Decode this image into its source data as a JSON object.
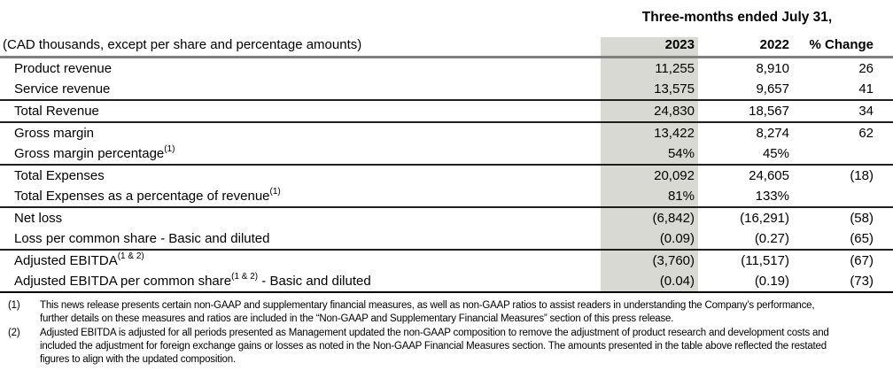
{
  "report": {
    "period_header": "Three-months ended July 31,",
    "caption": "(CAD thousands, except per share and percentage amounts)",
    "columns": {
      "y2023": "2023",
      "y2022": "2022",
      "change": "% Change"
    },
    "rows": [
      {
        "label": "Product revenue",
        "sup": "",
        "label_suffix": "",
        "y2023": "11,255",
        "y2022": "8,910",
        "change": "26",
        "section_start": false
      },
      {
        "label": "Service revenue",
        "sup": "",
        "label_suffix": "",
        "y2023": "13,575",
        "y2022": "9,657",
        "change": "41",
        "section_start": false
      },
      {
        "label": "Total Revenue",
        "sup": "",
        "label_suffix": "",
        "y2023": "24,830",
        "y2022": "18,567",
        "change": "34",
        "section_start": true
      },
      {
        "label": "Gross margin",
        "sup": "",
        "label_suffix": "",
        "y2023": "13,422",
        "y2022": "8,274",
        "change": "62",
        "section_start": true
      },
      {
        "label": "Gross margin percentage",
        "sup": "(1)",
        "label_suffix": "",
        "y2023": "54%",
        "y2022": "45%",
        "change": "",
        "section_start": false
      },
      {
        "label": "Total Expenses",
        "sup": "",
        "label_suffix": "",
        "y2023": "20,092",
        "y2022": "24,605",
        "change": "(18)",
        "section_start": true
      },
      {
        "label": "Total Expenses as a percentage of revenue",
        "sup": "(1)",
        "label_suffix": "",
        "y2023": "81%",
        "y2022": "133%",
        "change": "",
        "section_start": false
      },
      {
        "label": "Net loss",
        "sup": "",
        "label_suffix": "",
        "y2023": "(6,842)",
        "y2022": "(16,291)",
        "change": "(58)",
        "section_start": true
      },
      {
        "label": "Loss per common share - Basic and diluted",
        "sup": "",
        "label_suffix": "",
        "y2023": "(0.09)",
        "y2022": "(0.27)",
        "change": "(65)",
        "section_start": false
      },
      {
        "label": "Adjusted EBITDA",
        "sup": "(1 & 2)",
        "label_suffix": "",
        "y2023": "(3,760)",
        "y2022": "(11,517)",
        "change": "(67)",
        "section_start": true
      },
      {
        "label": "Adjusted EBITDA per common share",
        "sup": "(1 & 2)",
        "label_suffix": " - Basic and diluted",
        "y2023": "(0.04)",
        "y2022": "(0.19)",
        "change": "(73)",
        "section_start": false
      }
    ],
    "footnotes": [
      {
        "marker": "(1)",
        "text": "This news release presents certain non-GAAP and supplementary financial measures, as well as non-GAAP ratios to assist readers in understanding the Company’s performance, further details on these measures and ratios are included in the “Non-GAAP and Supplementary Financial Measures” section of this press release."
      },
      {
        "marker": "(2)",
        "text": "Adjusted EBITDA is adjusted for all periods presented as Management updated the non-GAAP composition to remove the adjustment of product research and development costs and included the adjustment for foreign exchange gains or losses as noted in the Non-GAAP Financial Measures section. The amounts presented in the table above reflected the restated figures to align with the updated composition."
      }
    ],
    "colors": {
      "band": "#d9d9d3",
      "header_rule": "#808080",
      "section_rule": "#1f1f1f",
      "bottom_rule": "#000000"
    }
  }
}
